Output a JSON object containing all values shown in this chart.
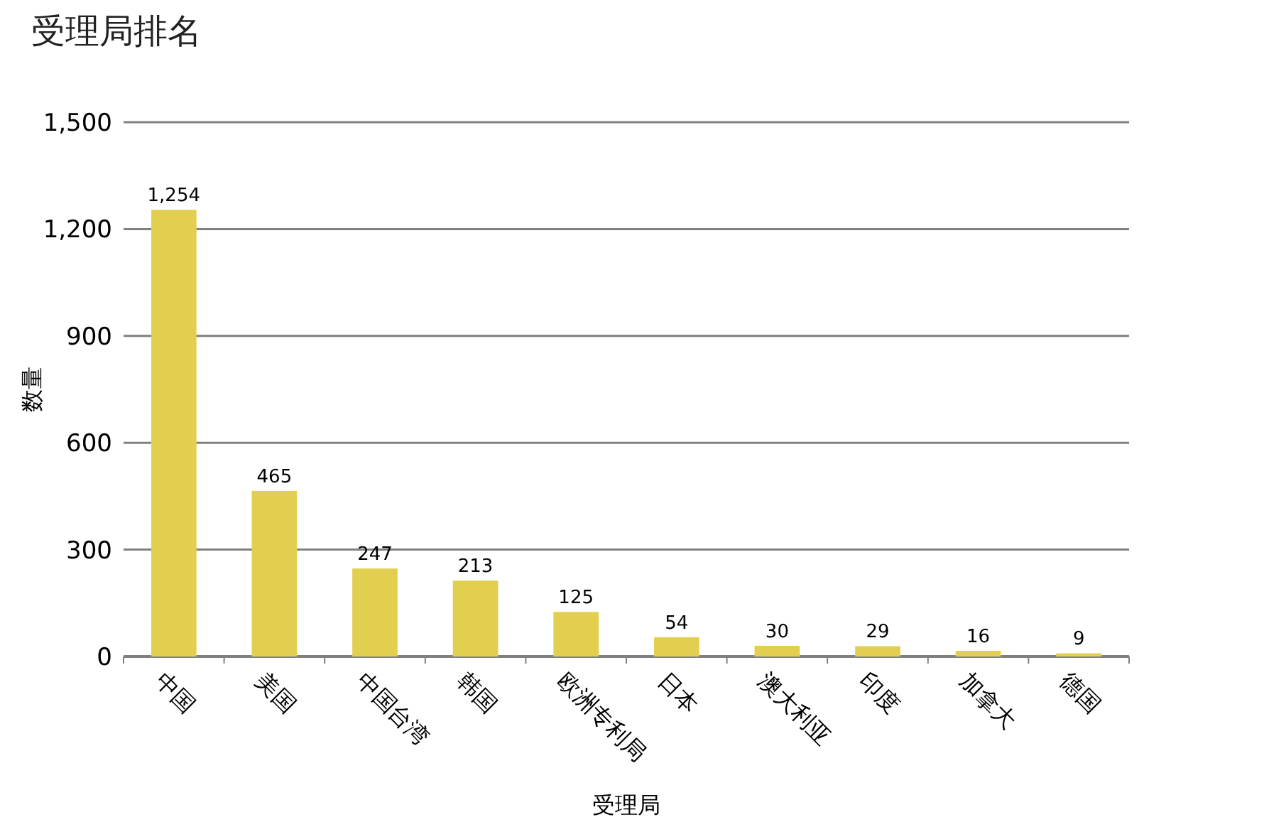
{
  "chart_data": {
    "type": "bar",
    "title": "受理局排名",
    "xlabel": "受理局",
    "ylabel": "数量",
    "categories": [
      "中国",
      "美国",
      "中国台湾",
      "韩国",
      "欧洲专利局",
      "日本",
      "澳大利亚",
      "印度",
      "加拿大",
      "德国"
    ],
    "values": [
      1254,
      465,
      247,
      213,
      125,
      54,
      30,
      29,
      16,
      9
    ],
    "color": "#e3cf4f",
    "ylim": [
      0,
      1500
    ],
    "yticks": [
      0,
      {
        "value": 300,
        "label": "300"
      },
      {
        "value": 600,
        "label": "600"
      },
      {
        "value": 900,
        "label": "900"
      },
      {
        "value": 1200,
        "label": "1,200"
      },
      {
        "value": 1500,
        "label": "1,500"
      }
    ],
    "value_labels": [
      "1,254",
      "465",
      "247",
      "213",
      "125",
      "54",
      "30",
      "29",
      "16",
      "9"
    ],
    "grid": "y"
  }
}
